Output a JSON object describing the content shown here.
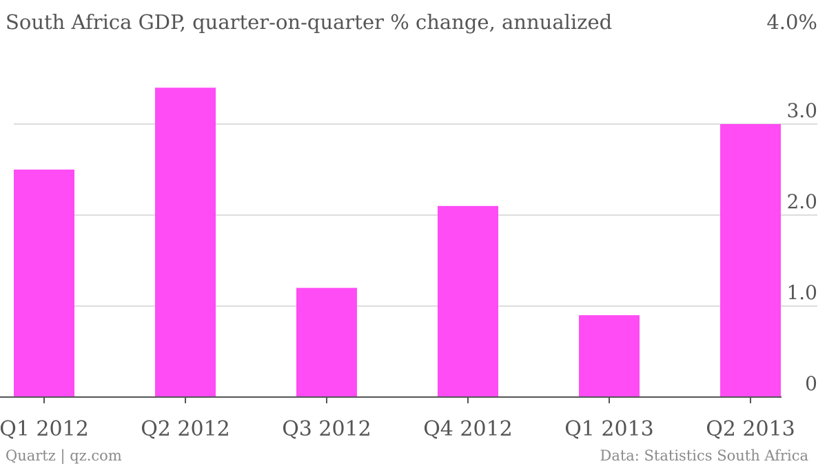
{
  "chart_data": {
    "type": "bar",
    "title": "South Africa GDP, quarter-on-quarter % change, annualized",
    "categories": [
      "Q1 2012",
      "Q2 2012",
      "Q3 2012",
      "Q4 2012",
      "Q1 2013",
      "Q2 2013"
    ],
    "values": [
      2.5,
      3.4,
      1.2,
      2.1,
      0.9,
      3.0
    ],
    "ylim": [
      0,
      4
    ],
    "yticks": [
      {
        "value": 0,
        "label": "0"
      },
      {
        "value": 1,
        "label": "1.0"
      },
      {
        "value": 2,
        "label": "2.0"
      },
      {
        "value": 3,
        "label": "3.0"
      },
      {
        "value": 4,
        "label": "4.0%"
      }
    ],
    "y_axis_side": "right",
    "grid": true,
    "bar_color": "#ff4cf4",
    "xlabel": "",
    "ylabel": ""
  },
  "footer": {
    "source_left": "Quartz | qz.com",
    "source_right": "Data: Statistics South Africa"
  }
}
